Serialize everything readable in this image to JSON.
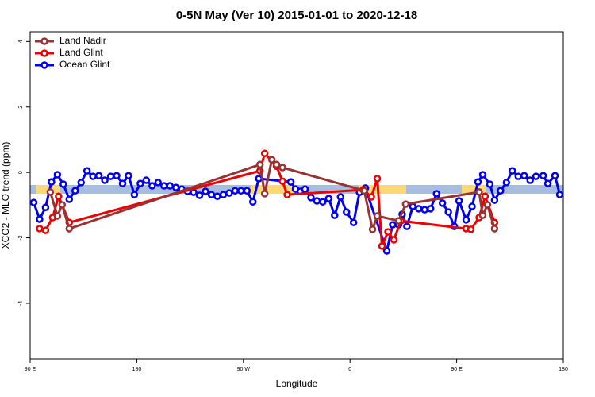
{
  "chart_data": {
    "type": "line",
    "title": "0-5N May (Ver 10)   2015-01-01 to 2020-12-18",
    "x_label": "Longitude",
    "y_label": "XCO2 - MLO trend (ppm)",
    "xlim": [
      90,
      540
    ],
    "xticks": [
      {
        "value": 90,
        "label": "90 E"
      },
      180,
      {
        "value": 270,
        "label": "90 W"
      },
      {
        "value": 360,
        "label": "0"
      },
      {
        "value": 450,
        "label": "90 E"
      },
      {
        "value": 540,
        "label": "180"
      }
    ],
    "ylim": [
      -5.7,
      4.3
    ],
    "yticks": [
      -4,
      -2,
      0,
      2,
      4
    ],
    "legend": "upper-left",
    "series": [
      {
        "name": "Land Nadir",
        "color": "#993333",
        "x": [
          107,
          113,
          117,
          123,
          284,
          288,
          294,
          298,
          303,
          372,
          379,
          383,
          401,
          407,
          469,
          472,
          476,
          482
        ],
        "values": [
          -0.6,
          -1.33,
          -0.99,
          -1.72,
          0.24,
          -0.65,
          0.39,
          0.24,
          0.15,
          -0.56,
          -1.74,
          -1.33,
          -1.48,
          -0.97,
          -0.6,
          -1.31,
          -0.99,
          -1.72
        ]
      },
      {
        "name": "Land Glint",
        "color": "#ee0000",
        "x": [
          98,
          103,
          109,
          114,
          123,
          284,
          288,
          298,
          303,
          307,
          371,
          378,
          383,
          387,
          392,
          397,
          403,
          458,
          462,
          469,
          474,
          482
        ],
        "values": [
          -1.72,
          -1.77,
          -1.38,
          -0.73,
          -1.53,
          0.05,
          0.58,
          0.19,
          -0.27,
          -0.68,
          -0.53,
          -0.75,
          -0.19,
          -2.25,
          -1.82,
          -2.06,
          -1.48,
          -1.72,
          -1.74,
          -1.38,
          -0.73,
          -1.53
        ]
      },
      {
        "name": "Ocean Glint",
        "color": "#0000ee",
        "x": [
          93,
          98,
          103,
          108,
          113,
          118,
          123,
          128,
          133,
          138,
          143,
          148,
          153,
          158,
          163,
          168,
          173,
          178,
          183,
          188,
          193,
          198,
          203,
          208,
          213,
          218,
          223,
          228,
          233,
          238,
          243,
          248,
          253,
          258,
          263,
          268,
          273,
          278,
          283,
          310,
          314,
          318,
          322,
          327,
          332,
          337,
          342,
          347,
          352,
          357,
          363,
          368,
          373,
          391,
          396,
          401,
          404,
          408,
          413,
          418,
          423,
          428,
          433,
          438,
          443,
          448,
          452,
          458,
          463,
          468,
          472,
          478,
          482,
          487,
          492,
          497,
          502,
          507,
          512,
          517,
          523,
          527,
          533,
          537
        ],
        "values": [
          -0.92,
          -1.43,
          -1.07,
          -0.29,
          -0.07,
          -0.36,
          -0.82,
          -0.56,
          -0.31,
          0.05,
          -0.12,
          -0.1,
          -0.24,
          -0.12,
          -0.1,
          -0.34,
          -0.1,
          -0.68,
          -0.34,
          -0.24,
          -0.41,
          -0.31,
          -0.41,
          -0.41,
          -0.46,
          -0.51,
          -0.58,
          -0.61,
          -0.7,
          -0.58,
          -0.68,
          -0.73,
          -0.68,
          -0.63,
          -0.56,
          -0.56,
          -0.56,
          -0.9,
          -0.19,
          -0.29,
          -0.51,
          -0.58,
          -0.51,
          -0.77,
          -0.87,
          -0.9,
          -0.8,
          -1.31,
          -0.75,
          -1.21,
          -1.53,
          -0.61,
          -0.48,
          -2.4,
          -1.6,
          -1.6,
          -1.28,
          -1.65,
          -1.04,
          -1.11,
          -1.14,
          -1.11,
          -0.65,
          -0.94,
          -1.21,
          -1.65,
          -0.87,
          -1.45,
          -1.04,
          -0.29,
          -0.07,
          -0.36,
          -0.85,
          -0.56,
          -0.31,
          0.05,
          -0.12,
          -0.1,
          -0.24,
          -0.12,
          -0.1,
          -0.34,
          -0.1,
          -0.68
        ]
      }
    ]
  }
}
